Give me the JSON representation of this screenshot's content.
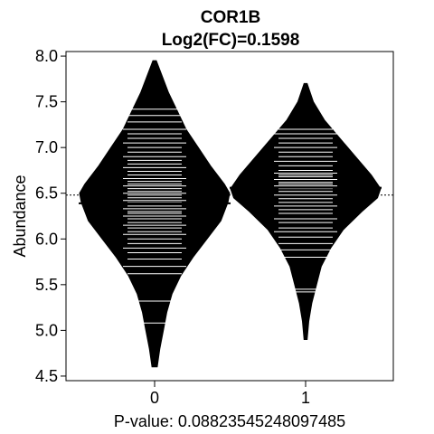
{
  "chart_data": {
    "type": "beanplot",
    "title": "COR1B",
    "subtitle": "Log2(FC)=0.1598",
    "ylabel": "Abundance",
    "xlabel": "P-value: 0.0882354524809748​5",
    "categories": [
      "0",
      "1"
    ],
    "ylim": [
      4.45,
      8.05
    ],
    "yticks": [
      4.5,
      5.0,
      5.5,
      6.0,
      6.5,
      7.0,
      7.5,
      8.0
    ],
    "ytick_labels": [
      "4.5",
      "5.0",
      "5.5",
      "6.0",
      "6.5",
      "7.0",
      "7.5",
      "8.0"
    ],
    "overall_mean": 6.48,
    "groups": [
      {
        "name": "0",
        "mean": 6.39,
        "density": [
          [
            4.6,
            0.015
          ],
          [
            4.8,
            0.03
          ],
          [
            5.0,
            0.05
          ],
          [
            5.2,
            0.07
          ],
          [
            5.4,
            0.1
          ],
          [
            5.6,
            0.15
          ],
          [
            5.8,
            0.22
          ],
          [
            6.0,
            0.3
          ],
          [
            6.2,
            0.38
          ],
          [
            6.4,
            0.42
          ],
          [
            6.5,
            0.43
          ],
          [
            6.6,
            0.4
          ],
          [
            6.8,
            0.32
          ],
          [
            7.0,
            0.25
          ],
          [
            7.2,
            0.18
          ],
          [
            7.4,
            0.13
          ],
          [
            7.6,
            0.08
          ],
          [
            7.8,
            0.04
          ],
          [
            7.95,
            0.01
          ]
        ],
        "observations": [
          5.08,
          5.32,
          5.62,
          5.7,
          5.78,
          5.85,
          5.9,
          5.95,
          6.0,
          6.05,
          6.08,
          6.12,
          6.15,
          6.18,
          6.22,
          6.25,
          6.28,
          6.3,
          6.33,
          6.36,
          6.4,
          6.42,
          6.45,
          6.48,
          6.5,
          6.52,
          6.55,
          6.58,
          6.6,
          6.63,
          6.66,
          6.7,
          6.74,
          6.78,
          6.82,
          6.86,
          6.9,
          6.95,
          7.0,
          7.05,
          7.1,
          7.15,
          7.2,
          7.28,
          7.35,
          7.42
        ]
      },
      {
        "name": "1",
        "mean": 6.56,
        "density": [
          [
            4.9,
            0.01
          ],
          [
            5.1,
            0.02
          ],
          [
            5.3,
            0.04
          ],
          [
            5.5,
            0.07
          ],
          [
            5.7,
            0.1
          ],
          [
            5.9,
            0.16
          ],
          [
            6.1,
            0.24
          ],
          [
            6.3,
            0.36
          ],
          [
            6.45,
            0.46
          ],
          [
            6.55,
            0.48
          ],
          [
            6.7,
            0.42
          ],
          [
            6.9,
            0.32
          ],
          [
            7.1,
            0.22
          ],
          [
            7.3,
            0.12
          ],
          [
            7.5,
            0.05
          ],
          [
            7.7,
            0.01
          ]
        ],
        "observations": [
          5.42,
          5.45,
          5.8,
          5.88,
          5.95,
          6.02,
          6.08,
          6.12,
          6.18,
          6.22,
          6.28,
          6.32,
          6.36,
          6.4,
          6.44,
          6.48,
          6.52,
          6.55,
          6.58,
          6.6,
          6.62,
          6.65,
          6.68,
          6.7,
          6.72,
          6.75,
          6.8,
          6.85,
          6.9,
          6.95,
          7.0,
          7.05,
          7.1,
          7.15,
          7.2
        ]
      }
    ]
  }
}
